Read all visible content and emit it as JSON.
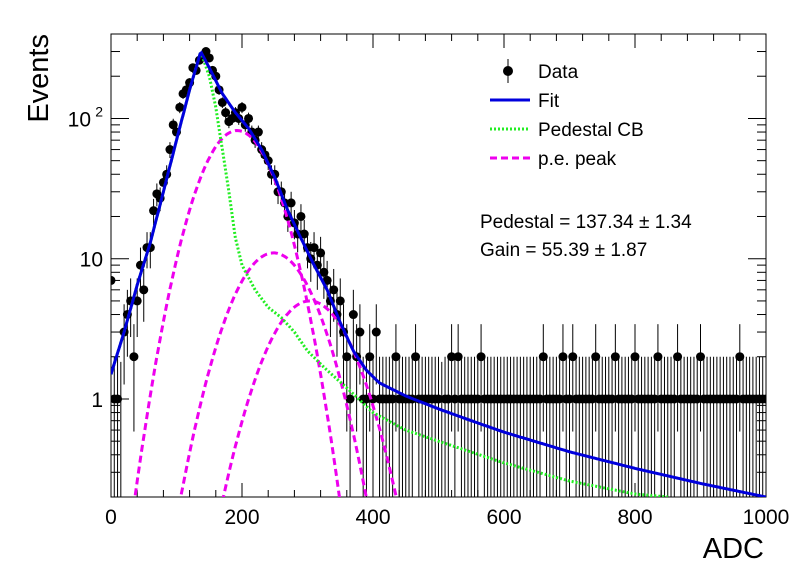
{
  "chart_data": {
    "type": "scatter",
    "title": "",
    "xlabel": "ADC",
    "ylabel": "Events",
    "xlim": [
      0,
      1000
    ],
    "ylim": [
      0.2,
      400
    ],
    "y_scale": "log",
    "x_ticks": [
      0,
      200,
      400,
      600,
      800,
      1000
    ],
    "x_tick_labels": [
      "0",
      "200",
      "400",
      "600",
      "800",
      "1000"
    ],
    "y_ticks": [
      1,
      10,
      100
    ],
    "y_tick_labels": [
      {
        "base": "1",
        "exp": ""
      },
      {
        "base": "10",
        "exp": ""
      },
      {
        "base": "10",
        "exp": "2"
      }
    ],
    "grid": false,
    "legend_position": "top-right",
    "legend": [
      {
        "label": "Data",
        "style": "marker",
        "color": "#000000"
      },
      {
        "label": "Fit",
        "style": "solid",
        "color": "#0000dd"
      },
      {
        "label": "Pedestal CB",
        "style": "dotted",
        "color": "#22ee22"
      },
      {
        "label": "p.e. peak",
        "style": "dashed",
        "color": "#ee00ee"
      }
    ],
    "annotations": [
      {
        "label": "Pedestal = 137.34",
        "pm": "1.34"
      },
      {
        "label": "Gain = 55.39",
        "pm": "1.87"
      }
    ],
    "data_points": {
      "x": [
        0,
        5,
        10,
        15,
        20,
        25,
        30,
        35,
        40,
        45,
        50,
        55,
        60,
        65,
        70,
        75,
        80,
        85,
        90,
        95,
        100,
        105,
        110,
        115,
        120,
        125,
        130,
        135,
        140,
        145,
        150,
        155,
        160,
        165,
        170,
        175,
        180,
        185,
        190,
        195,
        200,
        205,
        210,
        215,
        220,
        225,
        230,
        235,
        240,
        245,
        250,
        255,
        260,
        265,
        270,
        275,
        280,
        285,
        290,
        295,
        300,
        305,
        310,
        315,
        320,
        325,
        330,
        335,
        340,
        345,
        350,
        355,
        360,
        365,
        370,
        375,
        380,
        385,
        390,
        395,
        400,
        405,
        410,
        415,
        420,
        425,
        430,
        435,
        440,
        445,
        450,
        455,
        460,
        465,
        470,
        475,
        480,
        485,
        490,
        495,
        500,
        505,
        510,
        515,
        520,
        525,
        530,
        535,
        540,
        545,
        550,
        555,
        560,
        565,
        570,
        575,
        580,
        585,
        590,
        595,
        600,
        605,
        610,
        615,
        620,
        625,
        630,
        635,
        640,
        645,
        650,
        655,
        660,
        665,
        670,
        675,
        680,
        685,
        690,
        695,
        700,
        705,
        710,
        715,
        720,
        725,
        730,
        735,
        740,
        745,
        750,
        755,
        760,
        765,
        770,
        775,
        780,
        785,
        790,
        795,
        800,
        805,
        810,
        815,
        820,
        825,
        830,
        835,
        840,
        845,
        850,
        855,
        860,
        865,
        870,
        875,
        880,
        885,
        890,
        895,
        900,
        905,
        910,
        915,
        920,
        925,
        930,
        935,
        940,
        945,
        950,
        955,
        960,
        965,
        970,
        975,
        980,
        985,
        990,
        995,
        1000
      ],
      "y": [
        7,
        1,
        1,
        0,
        3,
        4,
        5,
        2,
        5,
        9,
        6,
        12,
        12,
        22,
        29,
        27,
        35,
        40,
        60,
        90,
        80,
        120,
        150,
        160,
        180,
        230,
        220,
        260,
        280,
        300,
        270,
        220,
        200,
        160,
        130,
        110,
        95,
        100,
        110,
        100,
        120,
        90,
        100,
        80,
        70,
        80,
        60,
        55,
        50,
        40,
        40,
        30,
        30,
        25,
        20,
        25,
        18,
        15,
        20,
        15,
        12,
        10,
        12,
        9,
        11,
        8,
        7,
        5,
        6,
        4,
        5,
        3,
        2,
        1,
        4,
        2,
        3,
        1,
        1,
        2,
        1,
        3,
        1,
        1,
        1,
        1,
        1,
        2,
        1,
        1,
        1,
        1,
        1,
        2,
        1,
        1,
        1,
        1,
        1,
        1,
        1,
        0,
        1,
        1,
        2,
        1,
        2,
        1,
        1,
        1,
        1,
        1,
        1,
        2,
        1,
        1,
        1,
        1,
        1,
        1,
        1,
        1,
        1,
        1,
        1,
        1,
        1,
        1,
        1,
        1,
        1,
        1,
        2,
        1,
        1,
        1,
        1,
        1,
        2,
        1,
        1,
        2,
        1,
        1,
        1,
        1,
        1,
        1,
        2,
        1,
        1,
        1,
        1,
        1,
        2,
        1,
        1,
        1,
        1,
        1,
        2,
        1,
        1,
        1,
        1,
        1,
        1,
        2,
        1,
        1,
        1,
        1,
        1,
        2,
        1,
        1,
        1,
        1,
        1,
        1,
        2,
        1,
        1,
        1,
        1,
        1,
        1,
        1,
        1,
        1,
        1,
        1,
        2,
        1,
        1,
        1,
        1,
        1,
        1,
        1,
        1
      ]
    },
    "curves": {
      "fit": {
        "x": [
          0,
          20,
          40,
          60,
          80,
          100,
          120,
          137,
          150,
          170,
          190,
          210,
          230,
          250,
          270,
          290,
          310,
          330,
          350,
          370,
          390,
          410,
          450,
          500,
          550,
          600,
          700,
          800,
          900,
          1000
        ],
        "y": [
          1.5,
          3.0,
          6.5,
          13,
          30,
          70,
          160,
          300,
          230,
          150,
          110,
          85,
          60,
          38,
          22,
          14,
          9,
          6,
          3.5,
          2.2,
          1.6,
          1.3,
          1.05,
          0.85,
          0.7,
          0.58,
          0.42,
          0.32,
          0.25,
          0.2
        ]
      },
      "pedestal_cb": {
        "x": [
          0,
          20,
          40,
          60,
          80,
          100,
          120,
          137,
          150,
          160,
          170,
          180,
          190,
          200,
          220,
          240,
          260,
          280,
          300,
          330,
          360,
          400,
          450,
          500,
          600,
          700,
          800,
          850
        ],
        "y": [
          1.5,
          3.0,
          6.5,
          13,
          30,
          70,
          160,
          300,
          200,
          120,
          60,
          30,
          14,
          9,
          6,
          4.5,
          3.8,
          3.0,
          2.2,
          1.6,
          1.2,
          0.8,
          0.6,
          0.5,
          0.35,
          0.26,
          0.21,
          0.2
        ]
      },
      "pe_peaks": [
        {
          "mu": 192.7,
          "sigma": 45,
          "amp": 82
        },
        {
          "mu": 248.1,
          "sigma": 50,
          "amp": 11
        },
        {
          "mu": 303.5,
          "sigma": 52,
          "amp": 5
        }
      ]
    }
  }
}
